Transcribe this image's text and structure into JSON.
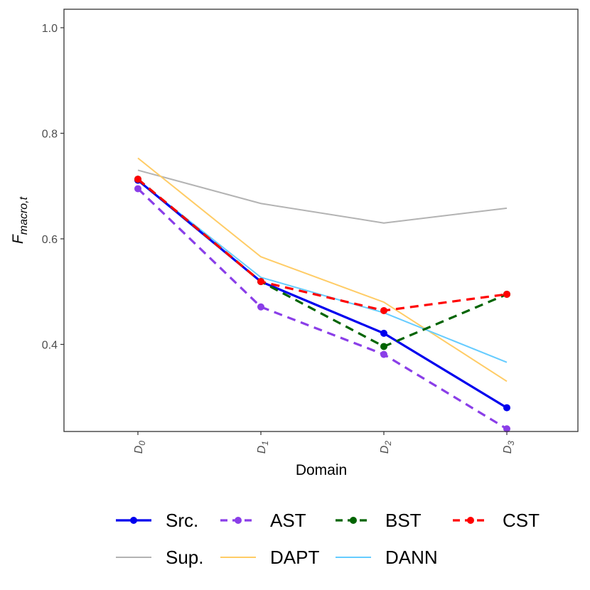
{
  "chart_data": {
    "type": "line",
    "title": "",
    "xlabel": "Domain",
    "ylabel": "F",
    "ylabel_subscript": "macro,t",
    "categories": [
      {
        "base": "D",
        "sub": "0"
      },
      {
        "base": "D",
        "sub": "1"
      },
      {
        "base": "D",
        "sub": "2"
      },
      {
        "base": "D",
        "sub": "3"
      }
    ],
    "ylim": [
      0.235,
      1.035
    ],
    "yticks": [
      0.4,
      0.6,
      0.8,
      1.0
    ],
    "ytick_labels": [
      "0.4",
      "0.6",
      "0.8",
      "1.0"
    ],
    "grid": false,
    "legend_position": "bottom",
    "series": [
      {
        "name": "Sup.",
        "values": [
          0.73,
          0.667,
          0.63,
          0.658
        ],
        "color": "#b3b3b3",
        "dash": "solid",
        "points": false,
        "weight": "thin"
      },
      {
        "name": "DAPT",
        "values": [
          0.753,
          0.566,
          0.48,
          0.33
        ],
        "color": "#ffcc66",
        "dash": "solid",
        "points": false,
        "weight": "thin"
      },
      {
        "name": "DANN",
        "values": [
          0.711,
          0.527,
          0.46,
          0.366
        ],
        "color": "#66ccff",
        "dash": "solid",
        "points": false,
        "weight": "thin"
      },
      {
        "name": "Src.",
        "values": [
          0.711,
          0.519,
          0.421,
          0.28
        ],
        "color": "#0000ee",
        "dash": "solid",
        "points": true,
        "weight": "thick"
      },
      {
        "name": "AST",
        "values": [
          0.695,
          0.471,
          0.381,
          0.24
        ],
        "color": "#8a3ee8",
        "dash": "dashed",
        "points": true,
        "weight": "thick"
      },
      {
        "name": "BST",
        "values": [
          0.713,
          0.519,
          0.396,
          0.495
        ],
        "color": "#006400",
        "dash": "dashed",
        "points": true,
        "weight": "thick"
      },
      {
        "name": "CST",
        "values": [
          0.713,
          0.519,
          0.464,
          0.495
        ],
        "color": "#ff0000",
        "dash": "dashed",
        "points": true,
        "weight": "thick"
      }
    ],
    "legend_order": [
      "Src.",
      "AST",
      "BST",
      "CST",
      "Sup.",
      "DAPT",
      "DANN"
    ]
  }
}
